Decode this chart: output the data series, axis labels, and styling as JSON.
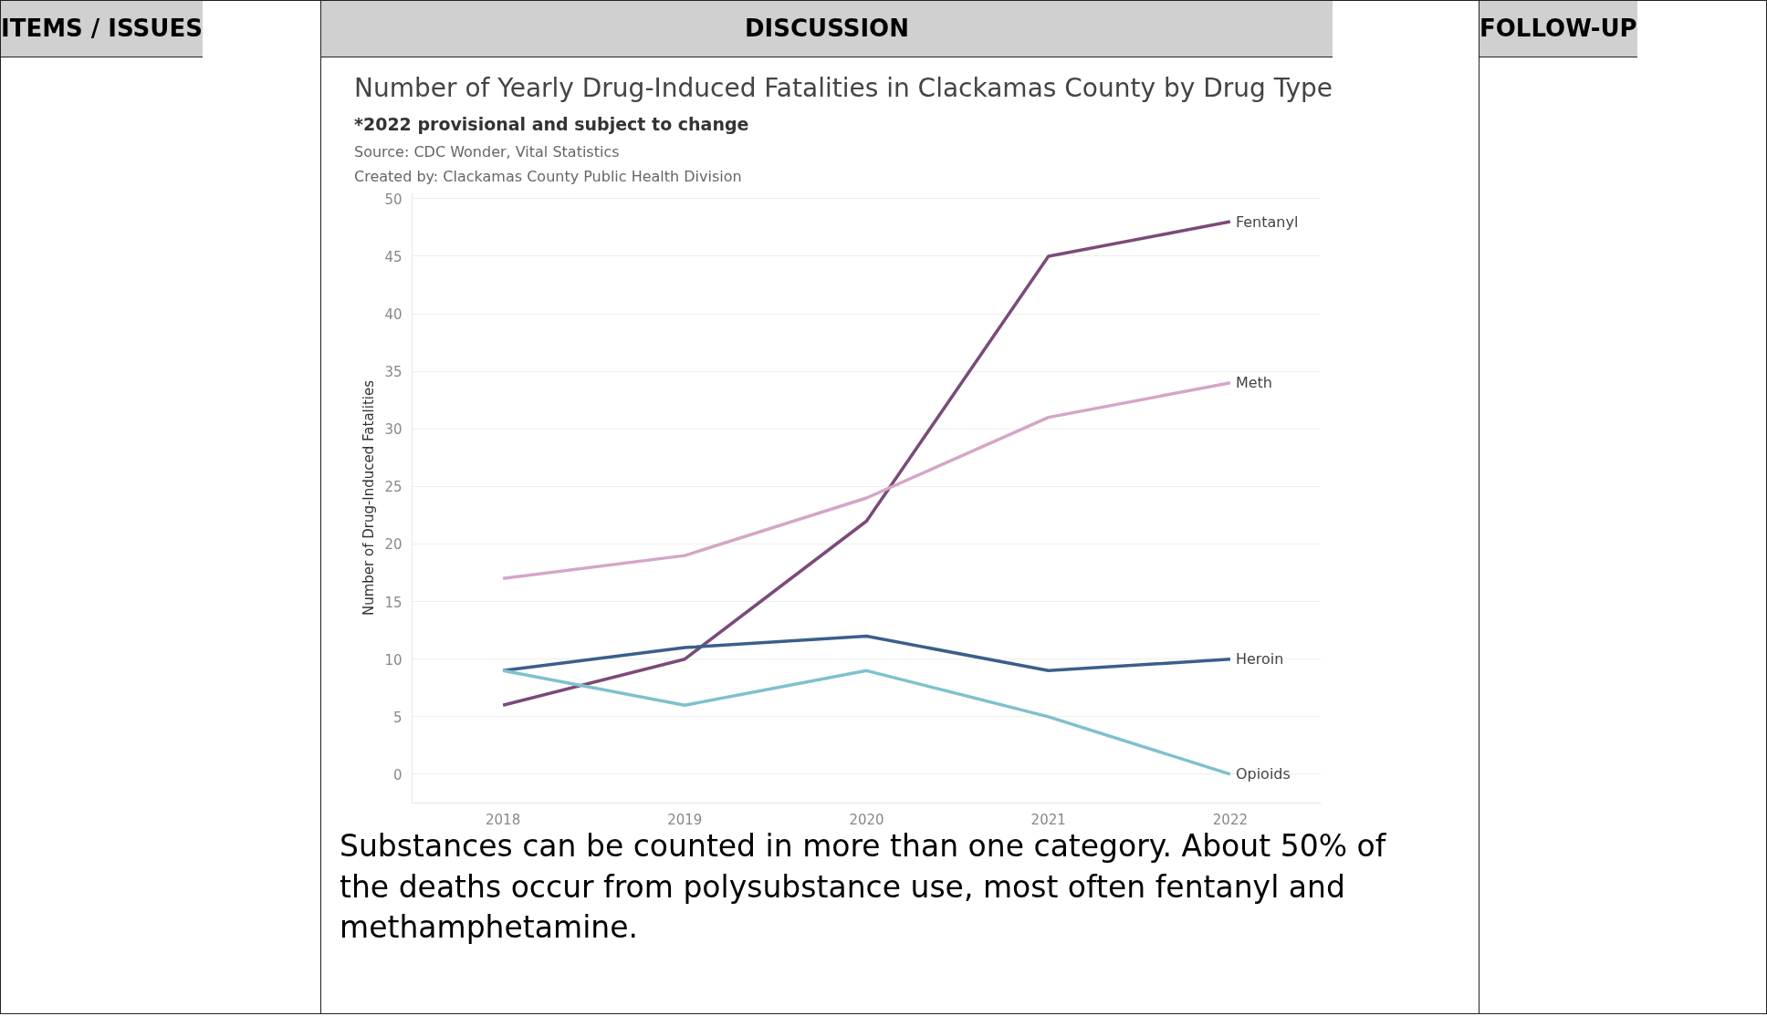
{
  "chart_data": {
    "type": "line",
    "title": "Number of Yearly Drug-Induced Fatalities in Clackamas County by Drug Type",
    "subtitle": "*2022 provisional and subject to change",
    "ylabel": "Number of Drug-Induced Fatalities",
    "annotations": [
      "Source: CDC Wonder, Vital Statistics",
      "Created by: Clackamas County Public Health Division",
      "Substances can be counted in more than one category. About 50% of the deaths occur from polysubstance use, most often fentanyl and methamphetamine.",
      "ITEMS / ISSUES",
      "DISCUSSION",
      "FOLLOW-UP"
    ],
    "categories": [
      "2018",
      "2019",
      "2020",
      "2021",
      "2022"
    ],
    "series": [
      {
        "name": "Fentanyl",
        "color": "#7b4a7a",
        "values": [
          6,
          10,
          22,
          45,
          48
        ]
      },
      {
        "name": "Meth",
        "color": "#d4a6c8",
        "values": [
          17,
          19,
          24,
          31,
          34
        ]
      },
      {
        "name": "Heroin",
        "color": "#3a5f8a",
        "values": [
          9,
          11,
          12,
          9,
          10
        ]
      },
      {
        "name": "Opioids",
        "color": "#7fc1cc",
        "values": [
          9,
          6,
          9,
          5,
          0
        ]
      }
    ],
    "ylim": [
      -2.5,
      50.5
    ],
    "yticks": [
      0,
      5,
      10,
      15,
      20,
      25,
      30,
      35,
      40,
      45,
      50
    ],
    "grid": "y"
  }
}
